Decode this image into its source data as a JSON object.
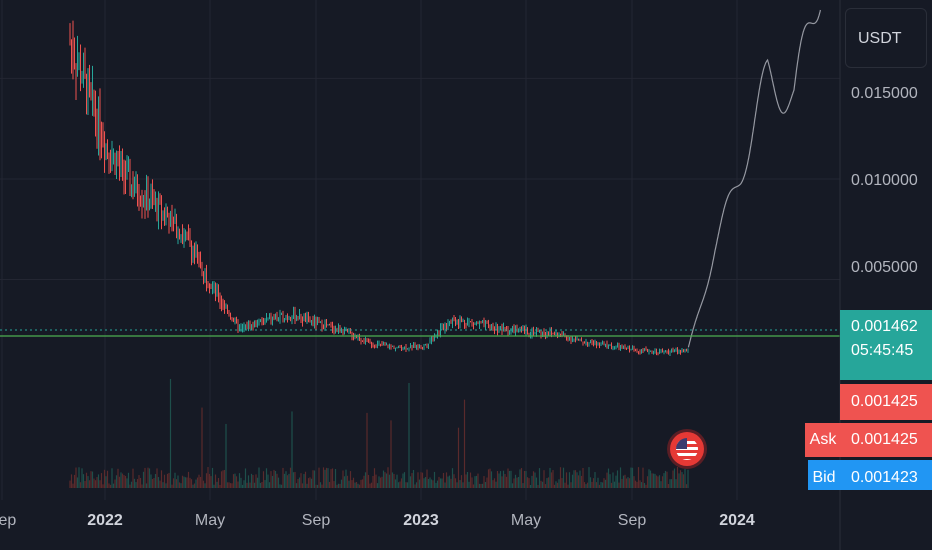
{
  "currency": "USDT",
  "price_axis": {
    "ticks": [
      "0.015000",
      "0.010000",
      "0.005000"
    ],
    "tick_values": [
      0.015,
      0.01,
      0.005
    ]
  },
  "last_price": {
    "value": "0.001462",
    "countdown": "05:45:45"
  },
  "quotes": {
    "ask_label": "Ask",
    "bid_label": "Bid",
    "price_a": "0.001425",
    "ask_price": "0.001425",
    "bid_price": "0.001423"
  },
  "time_axis": {
    "labels": [
      "Sep",
      "2022",
      "May",
      "Sep",
      "2023",
      "May",
      "Sep",
      "2024"
    ]
  },
  "colors": {
    "background": "#161a25",
    "up": "#26a69a",
    "down": "#ef5350",
    "last_price_tag": "#26a69a",
    "ask_tag": "#ef5350",
    "bid_tag": "#2196f3",
    "forecast_line": "#9598a1",
    "price_line": "#4caf50"
  },
  "icons": {
    "event": "us-flag-icon"
  },
  "chart_data": {
    "type": "line",
    "y_range": [
      0,
      0.019
    ],
    "x": [
      "2021-09",
      "2021-11",
      "2022-01",
      "2022-02",
      "2022-03",
      "2022-04",
      "2022-05",
      "2022-06",
      "2022-07",
      "2022-08",
      "2022-09",
      "2022-10",
      "2022-11",
      "2022-12",
      "2023-01",
      "2023-02",
      "2023-03",
      "2023-04",
      "2023-05",
      "2023-06",
      "2023-07",
      "2023-08",
      "2023-09",
      "2023-10",
      "2023-11"
    ],
    "series": [
      {
        "values": [
          0.022,
          0.019,
          0.0115,
          0.0095,
          0.0085,
          0.007,
          0.0045,
          0.0025,
          0.003,
          0.0032,
          0.0028,
          0.0024,
          0.0018,
          0.0016,
          0.0017,
          0.003,
          0.0028,
          0.0025,
          0.0024,
          0.0023,
          0.0019,
          0.0017,
          0.0015,
          0.0014,
          0.001462
        ]
      }
    ],
    "forecast": {
      "x": [
        "2023-11",
        "2023-12",
        "2024-01",
        "2024-02",
        "2024-03",
        "2024-04"
      ],
      "values": [
        0.0015,
        0.0065,
        0.0105,
        0.015,
        0.014,
        0.02
      ]
    },
    "volume_scale": "relative"
  }
}
